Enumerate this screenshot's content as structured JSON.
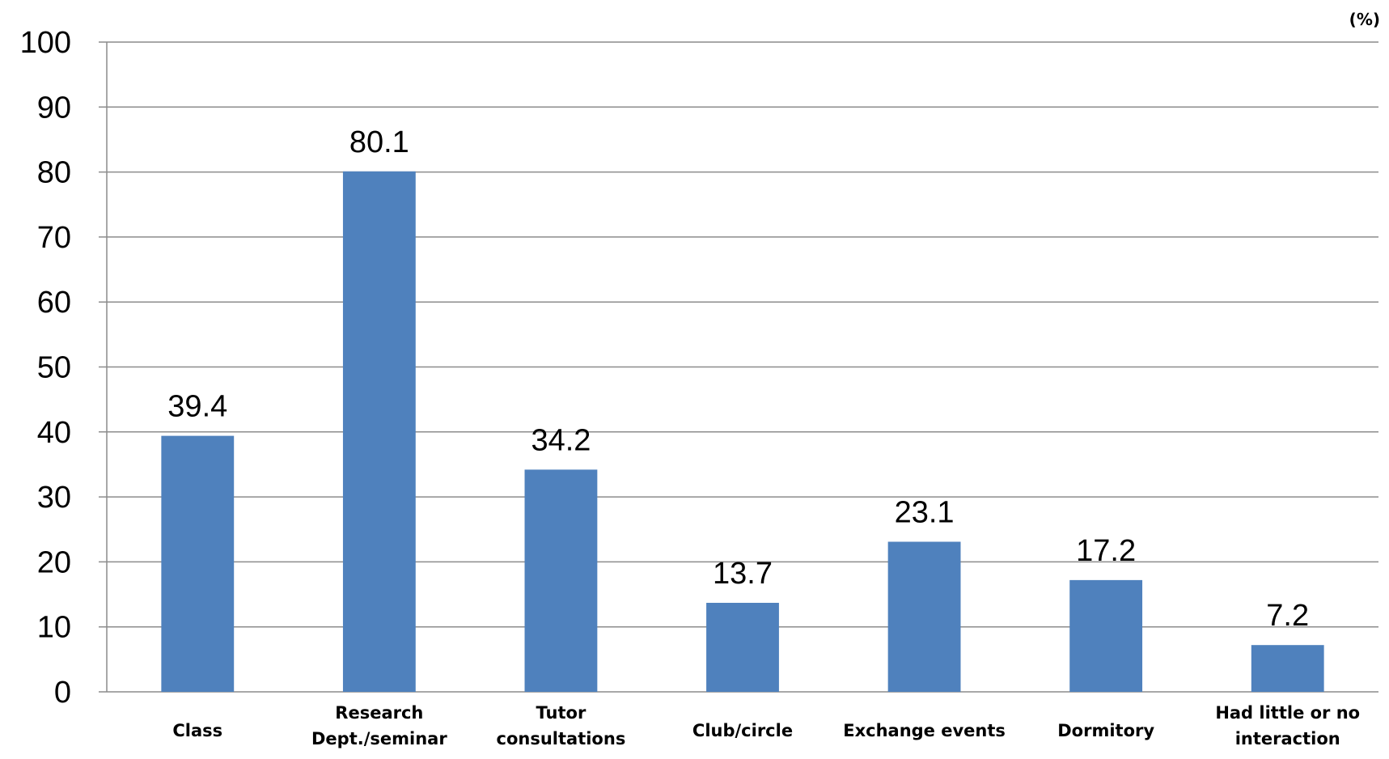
{
  "chart_data": {
    "type": "bar",
    "categories": [
      [
        "Class"
      ],
      [
        "Research",
        "Dept./seminar"
      ],
      [
        "Tutor",
        "consultations"
      ],
      [
        "Club/circle"
      ],
      [
        "Exchange events"
      ],
      [
        "Dormitory"
      ],
      [
        "Had little or no",
        "interaction"
      ]
    ],
    "values": [
      39.4,
      80.1,
      34.2,
      13.7,
      23.1,
      17.2,
      7.2
    ],
    "value_labels": [
      "39.4",
      "80.1",
      "34.2",
      "13.7",
      "23.1",
      "17.2",
      "7.2"
    ],
    "unit_label": "(%)",
    "ylim": [
      0,
      100
    ],
    "yticks": [
      0,
      10,
      20,
      30,
      40,
      50,
      60,
      70,
      80,
      90,
      100
    ],
    "grid": true,
    "legend": "none",
    "bar_color": "#4f81bd"
  }
}
